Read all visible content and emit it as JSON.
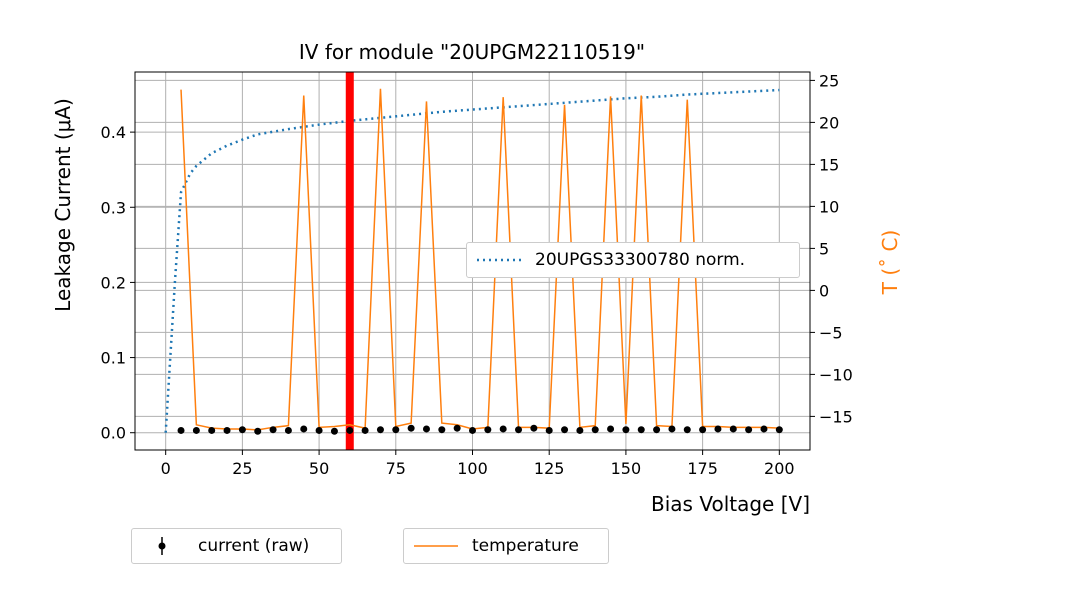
{
  "chart_data": {
    "type": "line",
    "title": "IV for module \"20UPGM22110519\"",
    "xlabel": "Bias Voltage [V]",
    "ylabel": "Leakage Current (μA)",
    "y2label": "T ($^\\circ$C)",
    "y2label_display": "T (˚ C)",
    "xlim": [
      -10,
      210
    ],
    "ylim": [
      -0.023,
      0.48
    ],
    "y2lim": [
      -19.0,
      26.0
    ],
    "xticks": [
      0,
      25,
      50,
      75,
      100,
      125,
      150,
      175,
      200
    ],
    "yticks": [
      0.0,
      0.1,
      0.2,
      0.3,
      0.4
    ],
    "ytick_labels": [
      "0.0",
      "0.1",
      "0.2",
      "0.3",
      "0.4"
    ],
    "y2ticks": [
      -15,
      -10,
      -5,
      0,
      5,
      10,
      15,
      20,
      25
    ],
    "y2tick_labels": [
      "−15",
      "−10",
      "−5",
      "0",
      "5",
      "10",
      "15",
      "20",
      "25"
    ],
    "grid": true,
    "vline": {
      "x": 60,
      "color": "#ff0000"
    },
    "colors": {
      "norm": "#1f77b4",
      "temperature": "#ff7f0e",
      "current": "#000000",
      "vline": "#ff0000"
    },
    "series": [
      {
        "name": "current (raw)",
        "axis": "left",
        "style": "points",
        "x": [
          5,
          10,
          15,
          20,
          25,
          30,
          35,
          40,
          45,
          50,
          55,
          60,
          65,
          70,
          75,
          80,
          85,
          90,
          95,
          100,
          105,
          110,
          115,
          120,
          125,
          130,
          135,
          140,
          145,
          150,
          155,
          160,
          165,
          170,
          175,
          180,
          185,
          190,
          195,
          200
        ],
        "y": [
          0.003,
          0.003,
          0.003,
          0.003,
          0.004,
          0.002,
          0.004,
          0.003,
          0.005,
          0.003,
          0.002,
          0.003,
          0.003,
          0.004,
          0.004,
          0.006,
          0.005,
          0.004,
          0.006,
          0.003,
          0.004,
          0.005,
          0.004,
          0.006,
          0.003,
          0.004,
          0.003,
          0.004,
          0.005,
          0.004,
          0.004,
          0.004,
          0.005,
          0.004,
          0.004,
          0.005,
          0.005,
          0.004,
          0.005,
          0.004
        ]
      },
      {
        "name": "temperature",
        "axis": "right",
        "style": "line",
        "x": [
          5,
          10,
          15,
          20,
          25,
          30,
          35,
          40,
          45,
          50,
          55,
          60,
          65,
          70,
          75,
          80,
          85,
          90,
          95,
          100,
          105,
          110,
          115,
          120,
          125,
          130,
          135,
          140,
          145,
          150,
          155,
          160,
          165,
          170,
          175,
          180,
          185,
          190,
          195,
          200
        ],
        "y": [
          23.9,
          -16.0,
          -16.4,
          -16.5,
          -16.5,
          -16.6,
          -16.3,
          -16.1,
          23.2,
          -16.3,
          -16.2,
          -16.0,
          -16.4,
          24.0,
          -16.2,
          -15.8,
          22.5,
          -15.8,
          -16.0,
          -16.5,
          -16.3,
          23.0,
          -16.3,
          -16.3,
          -16.4,
          22.1,
          -16.3,
          -16.1,
          23.1,
          -15.9,
          23.2,
          -16.1,
          -16.2,
          22.7,
          -16.2,
          -16.2,
          -16.3,
          -16.3,
          -16.3,
          -16.4
        ]
      },
      {
        "name": "20UPGS33300780 norm.",
        "axis": "left",
        "style": "dotted",
        "x": [
          0,
          3,
          5,
          8,
          10,
          15,
          20,
          25,
          30,
          40,
          50,
          60,
          70,
          80,
          90,
          100,
          110,
          120,
          130,
          140,
          150,
          160,
          170,
          180,
          190,
          200
        ],
        "y": [
          0.0,
          0.2,
          0.32,
          0.345,
          0.355,
          0.372,
          0.382,
          0.39,
          0.397,
          0.404,
          0.41,
          0.415,
          0.419,
          0.423,
          0.427,
          0.43,
          0.433,
          0.436,
          0.439,
          0.442,
          0.445,
          0.447,
          0.45,
          0.452,
          0.454,
          0.456
        ]
      }
    ]
  }
}
